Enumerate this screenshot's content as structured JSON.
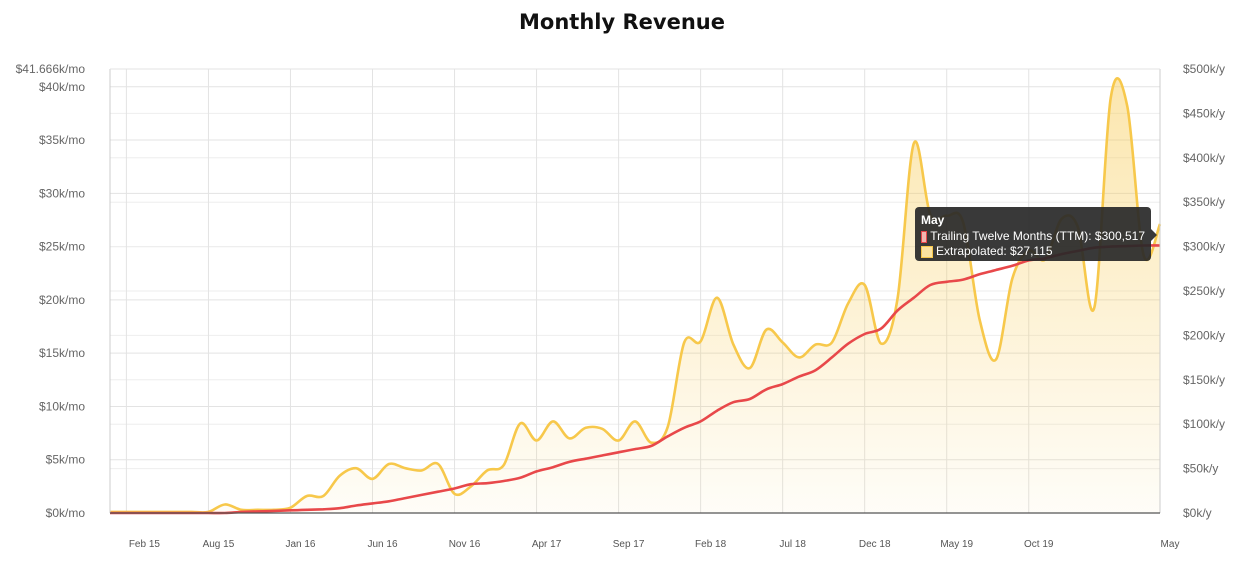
{
  "chart_data": {
    "type": "line",
    "title": "Monthly Revenue",
    "xlabel": "",
    "ylabel": "",
    "x_ticks": [
      "Feb 15",
      "Aug 15",
      "Jan 16",
      "Jun 16",
      "Nov 16",
      "Apr 17",
      "Sep 17",
      "Feb 18",
      "Jul 18",
      "Dec 18",
      "May 19",
      "Oct 19",
      "May"
    ],
    "y_ticks_left": [
      "$0k/mo",
      "$5k/mo",
      "$10k/mo",
      "$15k/mo",
      "$20k/mo",
      "$25k/mo",
      "$30k/mo",
      "$35k/mo",
      "$40k/mo",
      "$41.666k/mo"
    ],
    "y_ticks_right": [
      "$0k/y",
      "$50k/y",
      "$100k/y",
      "$150k/y",
      "$200k/y",
      "$250k/y",
      "$300k/y",
      "$350k/y",
      "$400k/y",
      "$450k/y",
      "$500k/y"
    ],
    "ylim_left": [
      0,
      41666
    ],
    "ylim_right": [
      0,
      500000
    ],
    "grid": true,
    "legend": "tooltip",
    "months": [
      "2015-01",
      "2015-02",
      "2015-03",
      "2015-04",
      "2015-05",
      "2015-06",
      "2015-07",
      "2015-08",
      "2015-09",
      "2015-10",
      "2015-11",
      "2015-12",
      "2016-01",
      "2016-02",
      "2016-03",
      "2016-04",
      "2016-05",
      "2016-06",
      "2016-07",
      "2016-08",
      "2016-09",
      "2016-10",
      "2016-11",
      "2016-12",
      "2017-01",
      "2017-02",
      "2017-03",
      "2017-04",
      "2017-05",
      "2017-06",
      "2017-07",
      "2017-08",
      "2017-09",
      "2017-10",
      "2017-11",
      "2017-12",
      "2018-01",
      "2018-02",
      "2018-03",
      "2018-04",
      "2018-05",
      "2018-06",
      "2018-07",
      "2018-08",
      "2018-09",
      "2018-10",
      "2018-11",
      "2018-12",
      "2019-01",
      "2019-02",
      "2019-03",
      "2019-04",
      "2019-05",
      "2019-06",
      "2019-07",
      "2019-08",
      "2019-09",
      "2019-10",
      "2019-11",
      "2019-12",
      "2020-01",
      "2020-02",
      "2020-03",
      "2020-04",
      "2020-05"
    ],
    "series": [
      {
        "name": "Trailing Twelve Months (TTM)",
        "color": "#e8484a",
        "values": [
          0,
          0,
          0,
          0,
          0,
          0,
          0,
          0,
          100,
          150,
          200,
          250,
          300,
          350,
          450,
          700,
          900,
          1100,
          1400,
          1700,
          2000,
          2300,
          2700,
          2800,
          3000,
          3300,
          3900,
          4300,
          4800,
          5100,
          5400,
          5700,
          6000,
          6300,
          7200,
          8000,
          8600,
          9600,
          10400,
          10700,
          11600,
          12100,
          12800,
          13400,
          14600,
          15900,
          16800,
          17300,
          19000,
          20200,
          21400,
          21700,
          21900,
          22400,
          22800,
          23200,
          23700,
          23900,
          24300,
          24600,
          24900,
          25000,
          25050,
          25100,
          25100
        ]
      },
      {
        "name": "Extrapolated",
        "color": "#f7c84b",
        "values": [
          100,
          100,
          100,
          100,
          100,
          100,
          100,
          800,
          300,
          300,
          300,
          500,
          1600,
          1600,
          3500,
          4200,
          3200,
          4600,
          4200,
          4000,
          4600,
          1800,
          2500,
          4000,
          4500,
          8400,
          6800,
          8600,
          7000,
          8000,
          7900,
          6800,
          8600,
          6600,
          8100,
          16000,
          16100,
          20200,
          15800,
          13600,
          17200,
          16000,
          14600,
          15800,
          16000,
          19700,
          21400,
          15900,
          20100,
          34700,
          28000,
          27900,
          27300,
          18200,
          14400,
          22000,
          24600,
          23800,
          27600,
          26800,
          19300,
          39000,
          38200,
          24200,
          27115
        ]
      }
    ],
    "tooltip": {
      "title": "May",
      "ttm_label": "Trailing Twelve Months (TTM): $300,517",
      "extrap_label": "Extrapolated: $27,115"
    }
  }
}
